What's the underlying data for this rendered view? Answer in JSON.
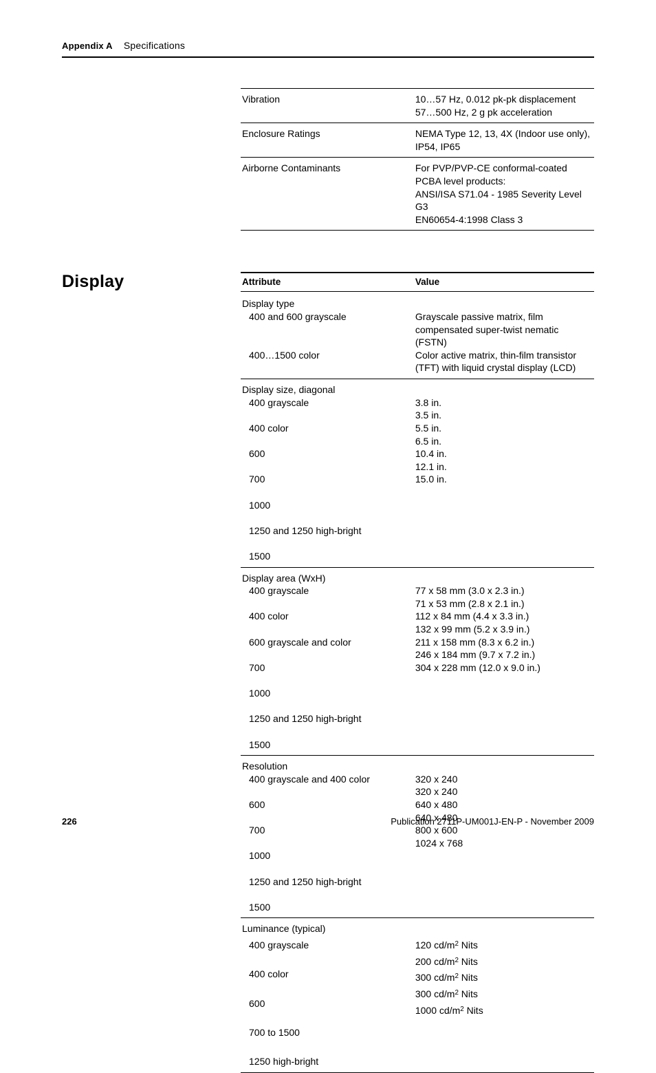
{
  "header": {
    "appendix": "Appendix A",
    "title": "Specifications"
  },
  "top_table": {
    "rows": [
      {
        "attr": "Vibration",
        "val": "10…57 Hz, 0.012 pk-pk displacement\n57…500 Hz, 2 g pk acceleration"
      },
      {
        "attr": "Enclosure Ratings",
        "val": "NEMA Type 12, 13, 4X (Indoor use only), IP54, IP65"
      },
      {
        "attr": "Airborne Contaminants",
        "val": "For PVP/PVP-CE conformal-coated PCBA level products:\nANSI/ISA S71.04 - 1985 Severity Level G3\nEN60654-4:1998 Class 3"
      }
    ]
  },
  "section_title": "Display",
  "display_table": {
    "head": {
      "attr": "Attribute",
      "val": "Value"
    },
    "rows": [
      {
        "attr_head": "Display type",
        "attr_lines": [
          "400 and 600 grayscale",
          "",
          "400…1500 color"
        ],
        "val_lines": [
          "",
          "Grayscale passive matrix, film compensated super-twist nematic (FSTN)",
          "Color active matrix, thin-film transistor (TFT) with liquid crystal display (LCD)"
        ]
      },
      {
        "attr_head": "Display size, diagonal",
        "attr_lines": [
          "400 grayscale",
          "400 color",
          "600",
          "700",
          "1000",
          "1250 and 1250 high-bright",
          "1500"
        ],
        "val_lines": [
          "",
          "3.8 in.",
          "3.5 in.",
          "5.5 in.",
          "6.5 in.",
          "10.4 in.",
          "12.1 in.",
          "15.0 in."
        ]
      },
      {
        "attr_head": "Display area (WxH)",
        "attr_lines": [
          "400 grayscale",
          "400 color",
          "600 grayscale and color",
          "700",
          "1000",
          "1250 and 1250 high-bright",
          "1500"
        ],
        "val_lines": [
          "",
          "77 x 58 mm (3.0 x 2.3 in.)",
          "71 x 53 mm (2.8 x 2.1 in.)",
          "112 x 84 mm (4.4 x 3.3 in.)",
          "132 x 99 mm (5.2 x 3.9 in.)",
          "211 x 158 mm (8.3 x 6.2 in.)",
          "246 x 184 mm (9.7 x 7.2 in.)",
          "304  x 228 mm (12.0 x 9.0 in.)"
        ]
      },
      {
        "attr_head": "Resolution",
        "attr_lines": [
          "400 grayscale and 400 color",
          "600",
          "700",
          "1000",
          "1250 and 1250 high-bright",
          "1500"
        ],
        "val_lines": [
          "",
          "320 x 240",
          "320 x 240",
          "640 x 480",
          "640 x 480",
          "800 x 600",
          "1024 x 768"
        ]
      },
      {
        "attr_head": "Luminance (typical)",
        "attr_lines": [
          "400 grayscale",
          "400 color",
          "600",
          "700 to 1500",
          "1250 high-bright"
        ],
        "val_html": [
          "",
          "120 cd/m<sup>2</sup> Nits",
          "200 cd/m<sup>2</sup> Nits",
          "300 cd/m<sup>2</sup> Nits",
          "300 cd/m<sup>2</sup> Nits",
          "1000 cd/m<sup>2</sup> Nits"
        ],
        "line_gap": 5
      }
    ]
  },
  "footer": {
    "page": "226",
    "pub": "Publication 2711P-UM001J-EN-P - November 2009"
  },
  "style": {
    "text_color": "#000000",
    "bg": "#ffffff",
    "rule_color": "#000000",
    "body_font_size_pt": 10.5,
    "heading_font_size_pt": 19,
    "line_height": 1.33
  }
}
